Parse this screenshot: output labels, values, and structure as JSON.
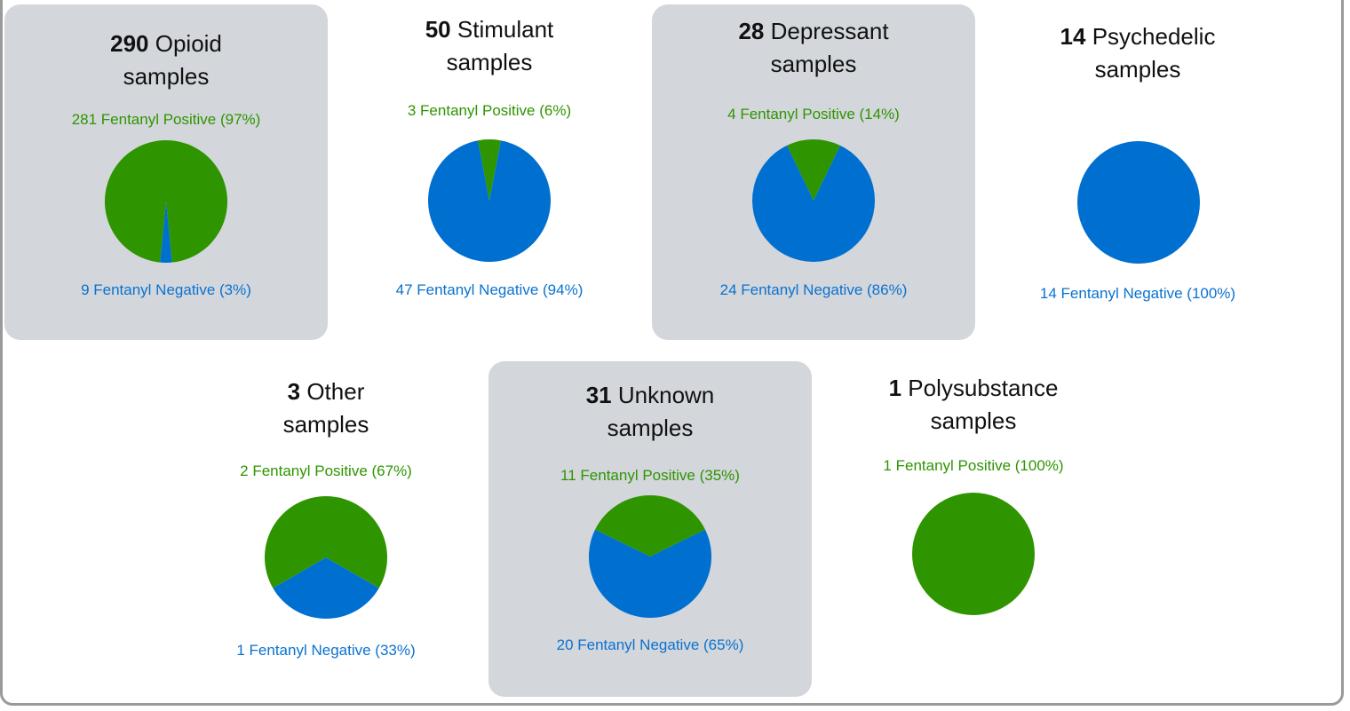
{
  "colors": {
    "positive": "#2e9500",
    "negative": "#0070d0",
    "card_shaded": "#d3d6db",
    "border": "#9a9a9a"
  },
  "title_suffix": "samples",
  "chart_data": [
    {
      "type": "pie",
      "count": "290",
      "category": "Opioid",
      "shaded": true,
      "slices": [
        {
          "name": "Fentanyl Positive",
          "value": 281,
          "label": "281 Fentanyl Positive (97%)"
        },
        {
          "name": "Fentanyl Negative",
          "value": 9,
          "label": "9 Fentanyl Negative (3%)"
        }
      ]
    },
    {
      "type": "pie",
      "count": "50",
      "category": "Stimulant",
      "shaded": false,
      "slices": [
        {
          "name": "Fentanyl Positive",
          "value": 3,
          "label": "3 Fentanyl Positive (6%)"
        },
        {
          "name": "Fentanyl Negative",
          "value": 47,
          "label": "47 Fentanyl Negative (94%)"
        }
      ]
    },
    {
      "type": "pie",
      "count": "28",
      "category": "Depressant",
      "shaded": true,
      "slices": [
        {
          "name": "Fentanyl Positive",
          "value": 4,
          "label": "4 Fentanyl Positive (14%)"
        },
        {
          "name": "Fentanyl Negative",
          "value": 24,
          "label": "24 Fentanyl Negative (86%)"
        }
      ]
    },
    {
      "type": "pie",
      "count": "14",
      "category": "Psychedelic",
      "shaded": false,
      "slices": [
        {
          "name": "Fentanyl Positive",
          "value": 0,
          "label": ""
        },
        {
          "name": "Fentanyl Negative",
          "value": 14,
          "label": "14 Fentanyl Negative (100%)"
        }
      ]
    },
    {
      "type": "pie",
      "count": "3",
      "category": "Other",
      "shaded": false,
      "slices": [
        {
          "name": "Fentanyl Positive",
          "value": 2,
          "label": "2 Fentanyl Positive (67%)"
        },
        {
          "name": "Fentanyl Negative",
          "value": 1,
          "label": "1 Fentanyl Negative (33%)"
        }
      ]
    },
    {
      "type": "pie",
      "count": "31",
      "category": "Unknown",
      "shaded": true,
      "slices": [
        {
          "name": "Fentanyl Positive",
          "value": 11,
          "label": "11 Fentanyl Positive (35%)"
        },
        {
          "name": "Fentanyl Negative",
          "value": 20,
          "label": "20 Fentanyl Negative (65%)"
        }
      ]
    },
    {
      "type": "pie",
      "count": "1",
      "category": "Polysubstance",
      "shaded": false,
      "slices": [
        {
          "name": "Fentanyl Positive",
          "value": 1,
          "label": "1 Fentanyl Positive (100%)"
        },
        {
          "name": "Fentanyl Negative",
          "value": 0,
          "label": ""
        }
      ]
    }
  ]
}
